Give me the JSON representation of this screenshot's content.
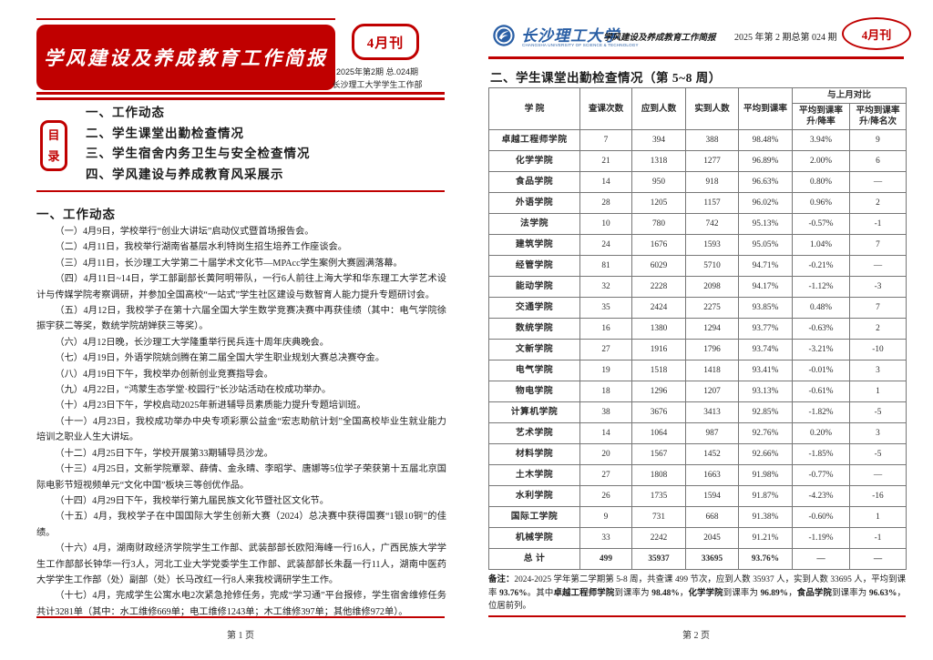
{
  "colors": {
    "red": "#c00000",
    "blue": "#2a5fa5"
  },
  "meta": {
    "issue_badge": "4月刊",
    "issue_info": "2025年第2期 总.024期",
    "publisher": "长沙理工大学学生工作部"
  },
  "left_page": {
    "title": "学风建设及养成教育工作简报",
    "toc_label": [
      "目",
      "录"
    ],
    "toc_items": [
      "一、工作动态",
      "二、学生课堂出勤检查情况",
      "三、学生宿舍内务卫生与安全检查情况",
      "四、学风建设与养成教育风采展示"
    ],
    "section_title": "一、工作动态",
    "paragraphs": [
      "（一）4月9日，学校举行“创业大讲坛”启动仪式暨首场报告会。",
      "（二）4月11日，我校举行湖南省基层水利特岗生招生培养工作座谈会。",
      "（三）4月11日，长沙理工大学第二十届学术文化节—MPAcc学生案例大赛圆满落幕。",
      "（四）4月11日~14日，学工部副部长黄阿明带队，一行6人前往上海大学和华东理工大学艺术设计与传媒学院考察调研，并参加全国高校“一站式”学生社区建设与数智育人能力提升专题研讨会。",
      "（五）4月12日，我校学子在第十六届全国大学生数学竞赛决赛中再获佳绩（其中：电气学院徐振宇获二等奖，数统学院胡婵获三等奖）。",
      "（六）4月12日晚，长沙理工大学隆重举行民兵连十周年庆典晚会。",
      "（七）4月19日，外语学院姚剑腾在第二届全国大学生职业规划大赛总决赛夺金。",
      "（八）4月19日下午，我校举办创新创业竞赛指导会。",
      "（九）4月22日，“鸿蒙生态学堂·校园行”长沙站活动在校成功举办。",
      "（十）4月23日下午，学校启动2025年新进辅导员素质能力提升专题培训班。",
      "（十一）4月23日，我校成功举办中央专项彩票公益金“宏志助航计划”全国高校毕业生就业能力培训之职业人生大讲坛。",
      "（十二）4月25日下午，学校开展第33期辅导员沙龙。",
      "（十三）4月25日，文新学院覃翠、薛倩、金永晴、李昭学、唐娜等5位学子荣获第十五届北京国际电影节短视频单元“文化中国”板块三等创优作品。",
      "（十四）4月29日下午，我校举行第九届民族文化节暨社区文化节。",
      "（十五）4月，我校学子在中国国际大学生创新大赛（2024）总决赛中获得国赛“1银10铜”的佳绩。",
      "（十六）4月，湖南财政经济学院学生工作部、武装部部长欧阳海峰一行16人，广西民族大学学生工作部部长钟华一行3人，河北工业大学党委学生工作部、武装部部长朱磊一行11人，湖南中医药大学学生工作部（处）副部（处）长马改红一行8人来我校调研学生工作。",
      "（十七）4月，完成学生公寓水电2次紧急抢修任务，完成“学习通”平台报修，学生宿舍维修任务共计3281单（其中：水工维修669单；电工维修1243单；木工维修397单；其他维修972单）。"
    ],
    "footer": "第 1 页"
  },
  "right_page": {
    "header": {
      "university": "长沙理工大学",
      "university_en": "CHANGSHA UNIVERSITY OF SCIENCE & TECHNOLOGY",
      "bulletin": "学风建设及养成教育工作简报",
      "issue": "2025 年第 2 期总第 024 期",
      "badge": "4月刊"
    },
    "section_title": "二、学生课堂出勤检查情况（第 5~8 周）",
    "table": {
      "columns": [
        "学  院",
        "查课次数",
        "应到人数",
        "实到人数",
        "平均到课率"
      ],
      "compare_group": "与上月对比",
      "compare_cols": [
        "平均到课率\n升/降率",
        "平均到课率\n升/降名次"
      ],
      "rows": [
        [
          "卓越工程师学院",
          "7",
          "394",
          "388",
          "98.48%",
          "3.94%",
          "9"
        ],
        [
          "化学学院",
          "21",
          "1318",
          "1277",
          "96.89%",
          "2.00%",
          "6"
        ],
        [
          "食品学院",
          "14",
          "950",
          "918",
          "96.63%",
          "0.80%",
          "—"
        ],
        [
          "外语学院",
          "28",
          "1205",
          "1157",
          "96.02%",
          "0.96%",
          "2"
        ],
        [
          "法学院",
          "10",
          "780",
          "742",
          "95.13%",
          "-0.57%",
          "-1"
        ],
        [
          "建筑学院",
          "24",
          "1676",
          "1593",
          "95.05%",
          "1.04%",
          "7"
        ],
        [
          "经管学院",
          "81",
          "6029",
          "5710",
          "94.71%",
          "-0.21%",
          "—"
        ],
        [
          "能动学院",
          "32",
          "2228",
          "2098",
          "94.17%",
          "-1.12%",
          "-3"
        ],
        [
          "交通学院",
          "35",
          "2424",
          "2275",
          "93.85%",
          "0.48%",
          "7"
        ],
        [
          "数统学院",
          "16",
          "1380",
          "1294",
          "93.77%",
          "-0.63%",
          "2"
        ],
        [
          "文新学院",
          "27",
          "1916",
          "1796",
          "93.74%",
          "-3.21%",
          "-10"
        ],
        [
          "电气学院",
          "19",
          "1518",
          "1418",
          "93.41%",
          "-0.01%",
          "3"
        ],
        [
          "物电学院",
          "18",
          "1296",
          "1207",
          "93.13%",
          "-0.61%",
          "1"
        ],
        [
          "计算机学院",
          "38",
          "3676",
          "3413",
          "92.85%",
          "-1.82%",
          "-5"
        ],
        [
          "艺术学院",
          "14",
          "1064",
          "987",
          "92.76%",
          "0.20%",
          "3"
        ],
        [
          "材料学院",
          "20",
          "1567",
          "1452",
          "92.66%",
          "-1.85%",
          "-5"
        ],
        [
          "土木学院",
          "27",
          "1808",
          "1663",
          "91.98%",
          "-0.77%",
          "—"
        ],
        [
          "水利学院",
          "26",
          "1735",
          "1594",
          "91.87%",
          "-4.23%",
          "-16"
        ],
        [
          "国际工学院",
          "9",
          "731",
          "668",
          "91.38%",
          "-0.60%",
          "1"
        ],
        [
          "机械学院",
          "33",
          "2242",
          "2045",
          "91.21%",
          "-1.19%",
          "-1"
        ]
      ],
      "total_row": [
        "总  计",
        "499",
        "35937",
        "33695",
        "93.76%",
        "—",
        "—"
      ]
    },
    "remark_segments": [
      {
        "text": "备注：",
        "bold": true
      },
      {
        "text": "2024-2025 学年第二学期第 5-8 周，共查课 499 节次，应到人数 35937 人，实到人数 33695 人，平均到课率 ",
        "bold": false
      },
      {
        "text": "93.76%",
        "bold": true
      },
      {
        "text": "。其中",
        "bold": false
      },
      {
        "text": "卓越工程师学院",
        "bold": true
      },
      {
        "text": "到课率为 ",
        "bold": false
      },
      {
        "text": "98.48%",
        "bold": true
      },
      {
        "text": "，",
        "bold": false
      },
      {
        "text": "化学学院",
        "bold": true
      },
      {
        "text": "到课率为 ",
        "bold": false
      },
      {
        "text": "96.89%",
        "bold": true
      },
      {
        "text": "，",
        "bold": false
      },
      {
        "text": "食品学院",
        "bold": true
      },
      {
        "text": "到课率为 ",
        "bold": false
      },
      {
        "text": "96.63%",
        "bold": true
      },
      {
        "text": "，位居前列。",
        "bold": false
      }
    ],
    "footer": "第 2 页"
  }
}
